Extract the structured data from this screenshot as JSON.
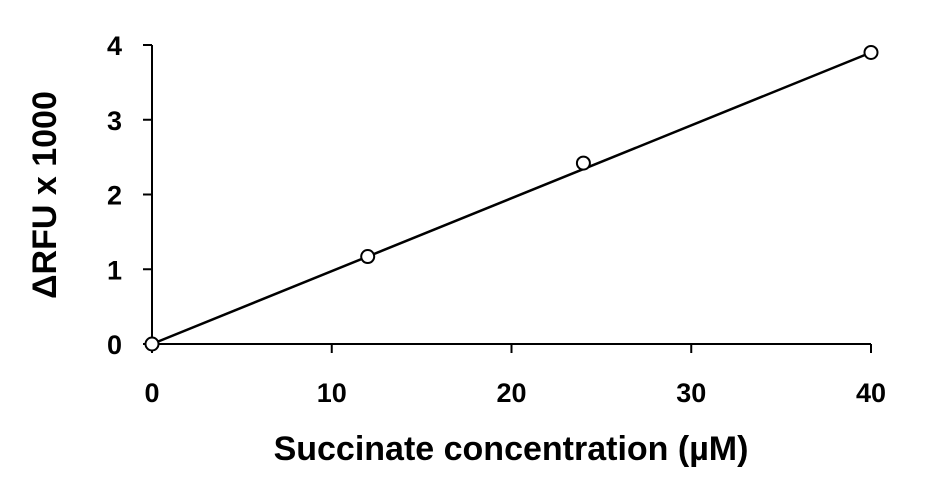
{
  "chart_data": {
    "type": "scatter",
    "xlabel": "Succinate concentration (µM)",
    "ylabel": "ΔRFU x 1000",
    "xlim": [
      0,
      40
    ],
    "ylim": [
      0,
      4
    ],
    "x_ticks": [
      0,
      10,
      20,
      30,
      40
    ],
    "y_ticks": [
      0,
      1,
      2,
      3,
      4
    ],
    "grid": false,
    "legend": "none",
    "series": [
      {
        "x": [
          0,
          12,
          24,
          40
        ],
        "y": [
          0,
          1.17,
          2.42,
          3.9
        ],
        "marker": "open-circle",
        "color": "#000000"
      }
    ],
    "trendline": {
      "type": "linear",
      "x": [
        0,
        40
      ],
      "y": [
        0,
        3.9
      ],
      "color": "#000000"
    }
  }
}
